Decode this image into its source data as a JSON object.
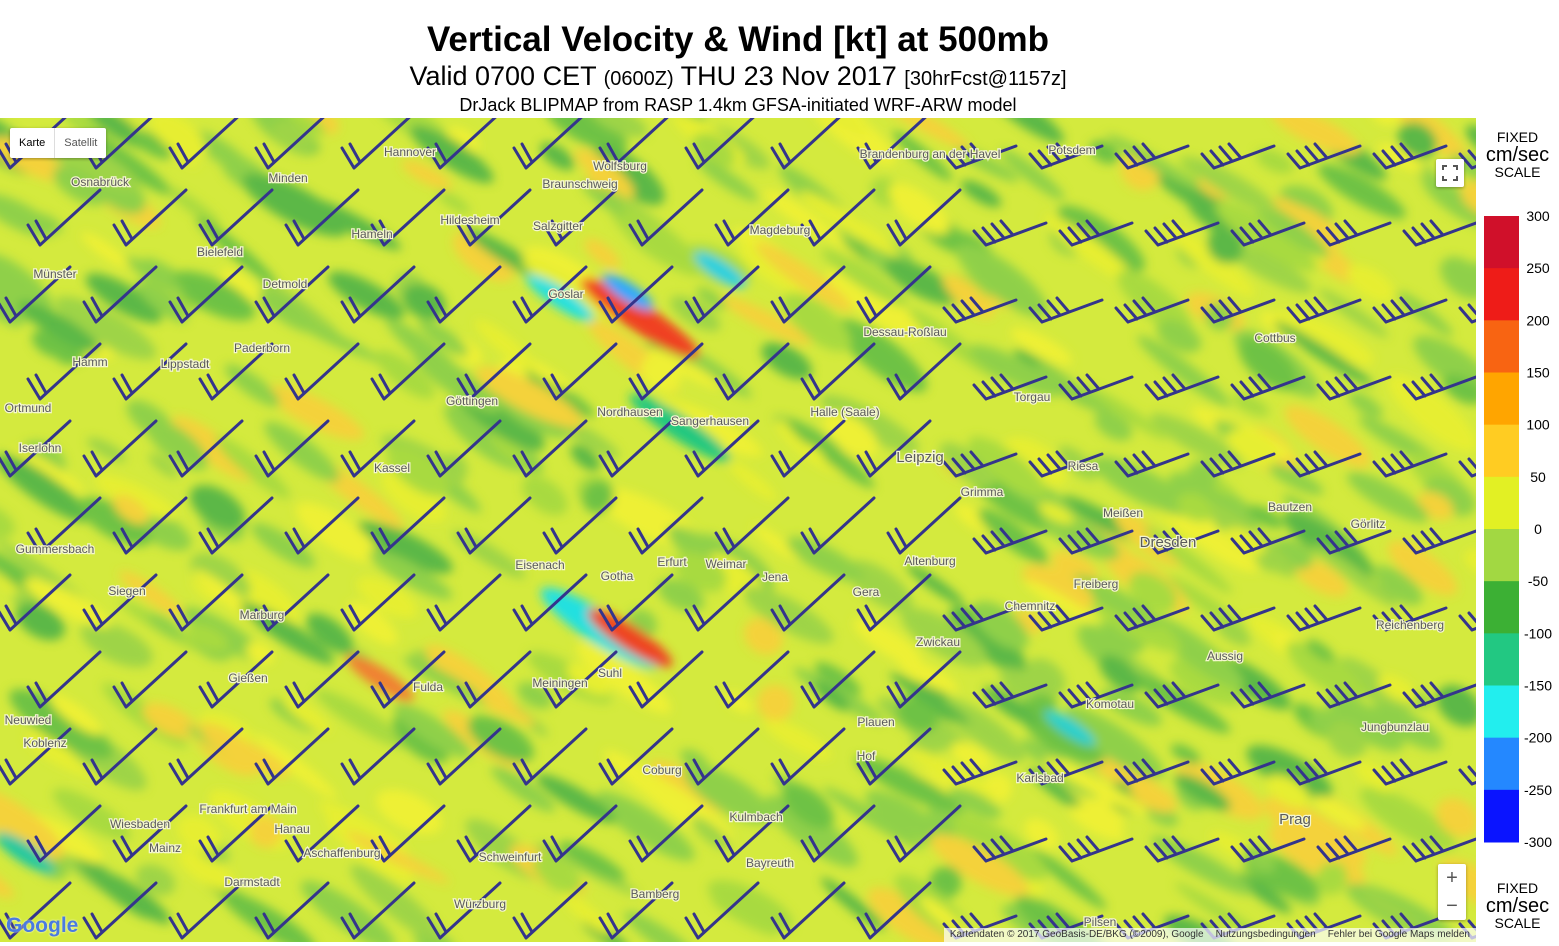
{
  "header": {
    "title": "Vertical Velocity & Wind [kt] at 500mb",
    "valid": "Valid 0700 CET",
    "zulu": "(0600Z)",
    "date": "THU 23 Nov 2017",
    "forecast": "[30hrFcst@1157z]",
    "source": "DrJack BLIPMAP from RASP 1.4km GFSA-initiated WRF-ARW model"
  },
  "map": {
    "controls": {
      "map": "Karte",
      "satellite": "Satellit",
      "zoom_in": "+",
      "zoom_out": "−"
    },
    "logo": "Google",
    "attribution": {
      "data": "Kartendaten © 2017 GeoBasis-DE/BKG (©2009), Google",
      "terms": "Nutzungsbedingungen",
      "report": "Fehler bei Google Maps melden"
    },
    "places": [
      "Hannover",
      "Osnabrück",
      "Minden",
      "Wolfsburg",
      "Braunschweig",
      "Hildesheim",
      "Bielefeld",
      "Münster",
      "Hameln",
      "Detmold",
      "Salzgitter",
      "Goslar",
      "Magdeburg",
      "Brandenburg an der Havel",
      "Potsdem",
      "Paderborn",
      "Lippstadt",
      "Hamm",
      "Göttingen",
      "Nordhausen",
      "Sangerhausen",
      "Halle (Saale)",
      "Dessau-Roßlau",
      "Kassel",
      "Leipzig",
      "Torgau",
      "Cottbus",
      "Iserlohn",
      "Erfurt",
      "Weimar",
      "Jena",
      "Gera",
      "Gotha",
      "Eisenach",
      "Fulda",
      "Siegen",
      "Marburg",
      "Gießen",
      "Altenburg",
      "Dresden",
      "Görlitz",
      "Bautzen",
      "Zwickau",
      "Plauen",
      "Chemnitz",
      "Meiningen",
      "Suhl",
      "Coburg",
      "Hof",
      "Frankfurt am Main",
      "Wiesbaden",
      "Mainz",
      "Hanau",
      "Aschaffenburg",
      "Darmstadt",
      "Würzburg",
      "Schweinfurt",
      "Bamberg",
      "Bayreuth",
      "Kulmbach",
      "Koblenz",
      "Karlsbad",
      "Prag",
      "Aussig",
      "Komotau",
      "Reichenberg",
      "Jungbunzlau",
      "Pilsen",
      "Freiberg",
      "Meißen",
      "Riesa",
      "Grimma",
      "Ortmund",
      "Gummersbach",
      "Neuwied"
    ]
  },
  "scale": {
    "top": {
      "line1": "FIXED",
      "line2": "cm/sec",
      "line3": "SCALE"
    },
    "bottom": {
      "line1": "FIXED",
      "line2": "cm/sec",
      "line3": "SCALE"
    },
    "ticks": [
      300,
      250,
      200,
      150,
      100,
      50,
      0,
      -50,
      -100,
      -150,
      -200,
      -250,
      -300
    ],
    "colors": [
      "#d0102a",
      "#ee1c18",
      "#f86412",
      "#ffa500",
      "#ffcc22",
      "#e2f024",
      "#a2d842",
      "#3cb034",
      "#22c882",
      "#22eeee",
      "#2488ff",
      "#0a14ff"
    ]
  }
}
